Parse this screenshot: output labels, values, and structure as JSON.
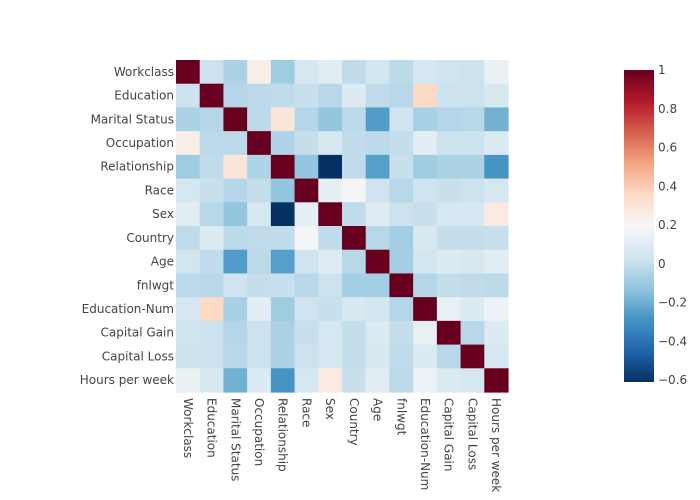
{
  "chart_data": {
    "type": "heatmap",
    "variables": [
      "Workclass",
      "Education",
      "Marital Status",
      "Occupation",
      "Relationship",
      "Race",
      "Sex",
      "Country",
      "Age",
      "fnlwgt",
      "Education-Num",
      "Capital Gain",
      "Capital Loss",
      "Hours per week"
    ],
    "z": [
      [
        1.0,
        0.02,
        -0.06,
        0.25,
        -0.09,
        0.05,
        0.1,
        -0.01,
        0.04,
        -0.02,
        0.05,
        0.03,
        0.02,
        0.14
      ],
      [
        0.02,
        1.0,
        -0.04,
        -0.02,
        -0.01,
        0.01,
        -0.03,
        0.08,
        -0.01,
        -0.03,
        0.36,
        0.02,
        0.02,
        0.06
      ],
      [
        -0.06,
        -0.04,
        1.0,
        -0.02,
        0.3,
        -0.04,
        -0.12,
        -0.02,
        -0.26,
        0.03,
        -0.07,
        -0.04,
        -0.03,
        -0.19
      ],
      [
        0.25,
        -0.02,
        -0.02,
        1.0,
        -0.05,
        0.0,
        0.06,
        -0.01,
        -0.02,
        0.0,
        0.11,
        0.02,
        0.02,
        0.08
      ],
      [
        -0.09,
        -0.01,
        0.3,
        -0.05,
        1.0,
        -0.12,
        -0.61,
        -0.01,
        -0.25,
        0.01,
        -0.09,
        -0.06,
        -0.06,
        -0.28
      ],
      [
        0.05,
        0.01,
        -0.04,
        0.0,
        -0.12,
        1.0,
        0.12,
        0.18,
        0.03,
        -0.03,
        0.03,
        0.01,
        0.02,
        0.05
      ],
      [
        0.1,
        -0.03,
        -0.12,
        0.06,
        -0.61,
        0.12,
        1.0,
        -0.01,
        0.09,
        0.02,
        0.01,
        0.05,
        0.05,
        0.27
      ],
      [
        -0.01,
        0.08,
        -0.02,
        -0.01,
        -0.01,
        0.18,
        -0.01,
        1.0,
        -0.03,
        -0.08,
        0.06,
        0.0,
        0.0,
        0.01
      ],
      [
        0.04,
        -0.01,
        -0.26,
        -0.02,
        -0.25,
        0.03,
        0.09,
        -0.03,
        1.0,
        -0.08,
        0.04,
        0.08,
        0.06,
        0.1
      ],
      [
        -0.02,
        -0.03,
        0.03,
        0.0,
        0.01,
        -0.03,
        0.02,
        -0.08,
        -0.08,
        1.0,
        -0.04,
        0.0,
        -0.01,
        -0.02
      ],
      [
        0.05,
        0.36,
        -0.07,
        0.11,
        -0.09,
        0.03,
        0.01,
        0.06,
        0.04,
        -0.04,
        1.0,
        0.13,
        0.08,
        0.15
      ],
      [
        0.03,
        0.02,
        -0.04,
        0.02,
        -0.06,
        0.01,
        0.05,
        0.0,
        0.08,
        0.0,
        0.13,
        1.0,
        -0.03,
        0.08
      ],
      [
        0.02,
        0.02,
        -0.03,
        0.02,
        -0.06,
        0.02,
        0.05,
        0.0,
        0.06,
        -0.01,
        0.08,
        -0.03,
        1.0,
        0.05
      ],
      [
        0.14,
        0.06,
        -0.19,
        0.08,
        -0.28,
        0.05,
        0.27,
        0.01,
        0.1,
        -0.02,
        0.15,
        0.08,
        0.05,
        1.0
      ]
    ],
    "zmin": -0.61,
    "zmax": 1.0,
    "colorscale_name": "RdBu",
    "colorbar_ticks": [
      -0.6,
      -0.4,
      -0.2,
      0,
      0.2,
      0.4,
      0.6,
      0.8,
      1
    ],
    "colorbar_tick_labels": [
      "−0.6",
      "−0.4",
      "−0.2",
      "0",
      "0.2",
      "0.4",
      "0.6",
      "0.8",
      "1"
    ],
    "y_order": "top-to-bottom matches variables order",
    "xlabel": "",
    "ylabel": "",
    "title": ""
  },
  "colors": {
    "scale": [
      "#053061",
      "#2166ac",
      "#4393c3",
      "#92c5de",
      "#d1e5f0",
      "#f7f7f7",
      "#fddbc7",
      "#f4a582",
      "#d6604d",
      "#b2182b",
      "#67001f"
    ],
    "text": "#444444",
    "background": "#ffffff"
  }
}
